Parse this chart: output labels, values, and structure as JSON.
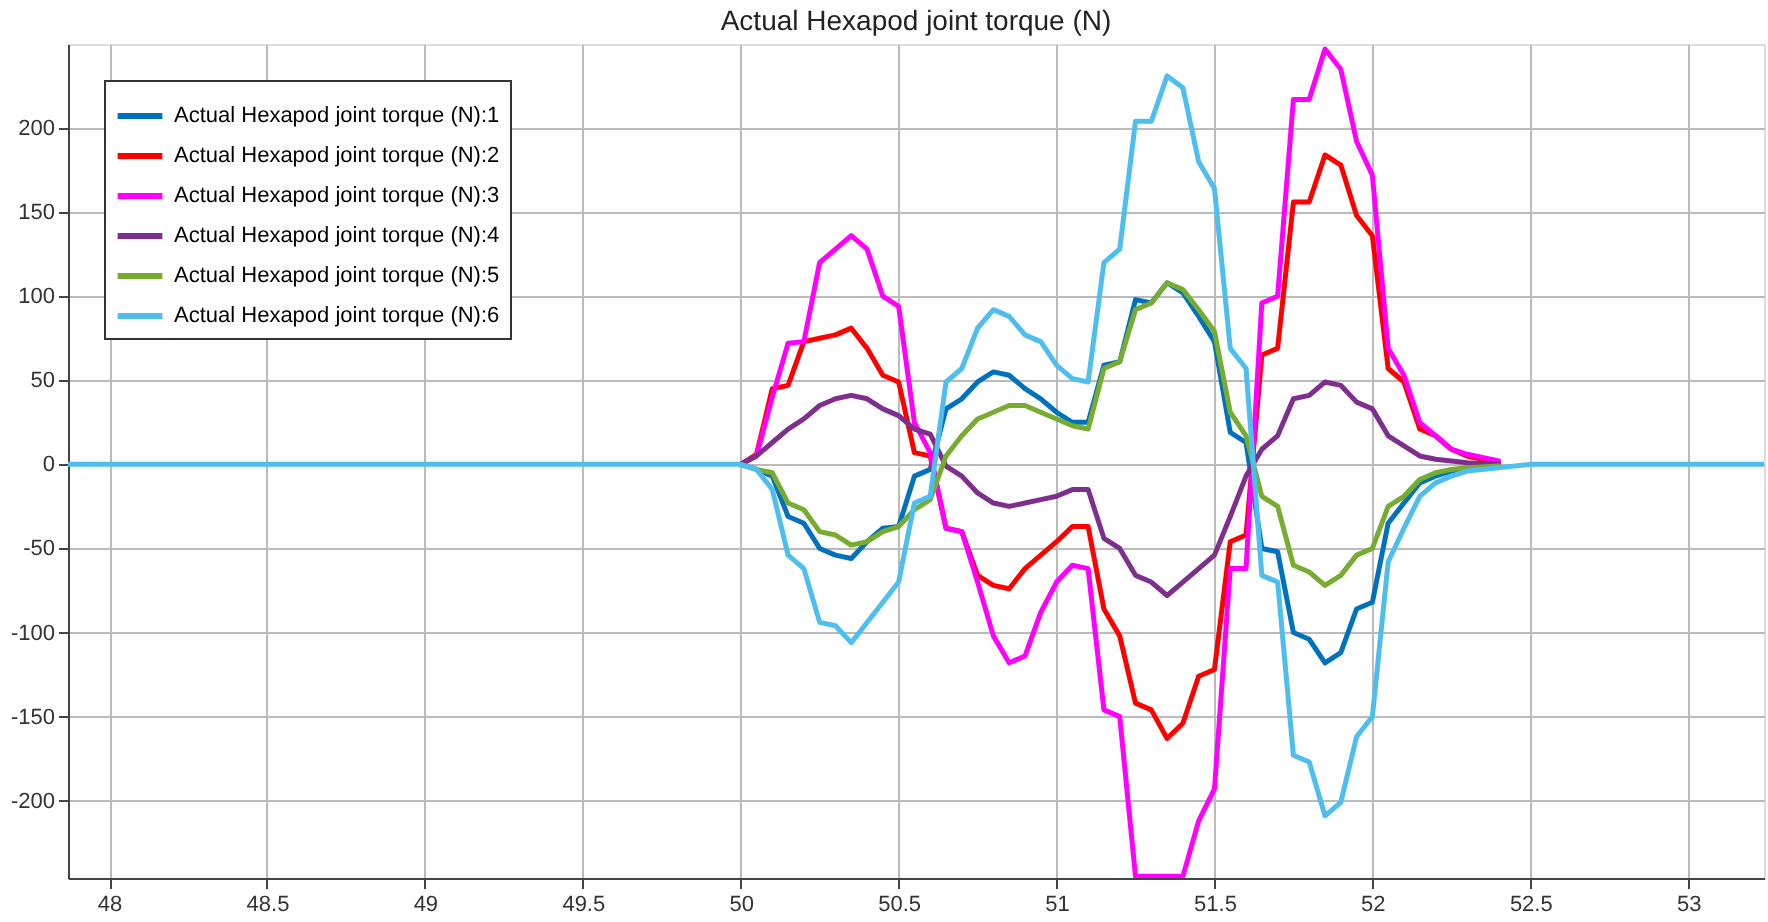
{
  "chart_data": {
    "type": "line",
    "title": "Actual Hexapod joint torque (N)",
    "x": [
      47.87,
      49.9,
      50,
      50.05,
      50.1,
      50.15,
      50.2,
      50.25,
      50.3,
      50.35,
      50.4,
      50.45,
      50.5,
      50.55,
      50.6,
      50.65,
      50.7,
      50.75,
      50.8,
      50.85,
      50.9,
      50.95,
      51,
      51.05,
      51.1,
      51.15,
      51.2,
      51.25,
      51.3,
      51.35,
      51.4,
      51.45,
      51.5,
      51.55,
      51.6,
      51.65,
      51.7,
      51.75,
      51.8,
      51.85,
      51.9,
      51.95,
      52,
      52.05,
      52.1,
      52.15,
      52.2,
      52.25,
      52.3,
      52.4,
      52.5,
      53.24
    ],
    "series": [
      {
        "name": "Actual Hexapod joint torque (N):1",
        "color": "#0072bd",
        "values": [
          null,
          null,
          0,
          -3,
          -7,
          -31,
          -35,
          -50,
          -54,
          -56,
          -46,
          -38,
          -37,
          -7,
          -3,
          33,
          39,
          49,
          55,
          53,
          45,
          39,
          31,
          25,
          25,
          59,
          61,
          98,
          96,
          108,
          102,
          88,
          73,
          19,
          13,
          -50,
          -52,
          -100,
          -104,
          -118,
          -112,
          -86,
          -82,
          -35,
          -23,
          -11,
          -7,
          -4,
          -2,
          -1,
          null,
          null
        ]
      },
      {
        "name": "Actual Hexapod joint torque (N):2",
        "color": "#ff0000",
        "values": [
          null,
          null,
          0,
          6,
          45,
          47,
          73,
          75,
          77,
          81,
          69,
          53,
          49,
          7,
          5,
          -38,
          -40,
          -66,
          -72,
          -74,
          -62,
          -54,
          -46,
          -37,
          -37,
          -86,
          -102,
          -142,
          -146,
          -163,
          -154,
          -126,
          -122,
          -46,
          -42,
          65,
          69,
          156,
          156,
          184,
          178,
          148,
          136,
          57,
          49,
          21,
          17,
          9,
          5,
          1,
          null,
          null
        ]
      },
      {
        "name": "Actual Hexapod joint torque (N):3",
        "color": "#ff00ff",
        "values": [
          null,
          null,
          0,
          5,
          40,
          72,
          73,
          120,
          128,
          136,
          128,
          100,
          94,
          25,
          7,
          -38,
          -40,
          -70,
          -102,
          -118,
          -114,
          -88,
          -70,
          -60,
          -62,
          -146,
          -150,
          -245,
          -245,
          -245,
          -245,
          -212,
          -193,
          -62,
          -62,
          96,
          100,
          217,
          217,
          247,
          235,
          192,
          172,
          69,
          53,
          25,
          17,
          9,
          6,
          2,
          null,
          null
        ]
      },
      {
        "name": "Actual Hexapod joint torque (N):4",
        "color": "#7e2f8e",
        "values": [
          null,
          null,
          0,
          5,
          13,
          21,
          27,
          35,
          39,
          41,
          39,
          33,
          29,
          21,
          18,
          -1,
          -7,
          -17,
          -23,
          -25,
          -23,
          -21,
          -19,
          -15,
          -15,
          -44,
          -50,
          -66,
          -70,
          -78,
          -70,
          -62,
          -54,
          -31,
          -7,
          9,
          17,
          39,
          41,
          49,
          47,
          37,
          33,
          17,
          11,
          5,
          3,
          2,
          1,
          0,
          null,
          null
        ]
      },
      {
        "name": "Actual Hexapod joint torque (N):5",
        "color": "#77ac30",
        "values": [
          null,
          null,
          0,
          -3,
          -5,
          -23,
          -27,
          -40,
          -42,
          -48,
          -46,
          -40,
          -37,
          -27,
          -21,
          5,
          17,
          27,
          31,
          35,
          35,
          31,
          27,
          23,
          21,
          57,
          61,
          92,
          96,
          108,
          104,
          92,
          79,
          31,
          17,
          -19,
          -25,
          -60,
          -64,
          -72,
          -66,
          -54,
          -50,
          -25,
          -19,
          -9,
          -5,
          -3,
          -2,
          -1,
          null,
          null
        ]
      },
      {
        "name": "Actual Hexapod joint torque (N):6",
        "color": "#4dbeee",
        "values": [
          0,
          0,
          0,
          -3,
          -15,
          -54,
          -62,
          -94,
          -96,
          -106,
          -94,
          -82,
          -70,
          -23,
          -19,
          49,
          57,
          81,
          92,
          88,
          77,
          73,
          59,
          51,
          49,
          120,
          128,
          204,
          204,
          231,
          224,
          180,
          164,
          69,
          57,
          -66,
          -70,
          -173,
          -177,
          -209,
          -201,
          -162,
          -150,
          -58,
          -38,
          -19,
          -11,
          -7,
          -4,
          -2,
          0,
          0
        ]
      }
    ],
    "xlim": [
      47.87,
      53.24
    ],
    "ylim": [
      -246,
      250
    ],
    "xticks": [
      48,
      48.5,
      49,
      49.5,
      50,
      50.5,
      51,
      51.5,
      52,
      52.5,
      53
    ],
    "yticks": [
      -200,
      -150,
      -100,
      -50,
      0,
      50,
      100,
      150,
      200
    ],
    "grid": true,
    "legend": "top left",
    "marker": "none",
    "line_style": "solid"
  }
}
